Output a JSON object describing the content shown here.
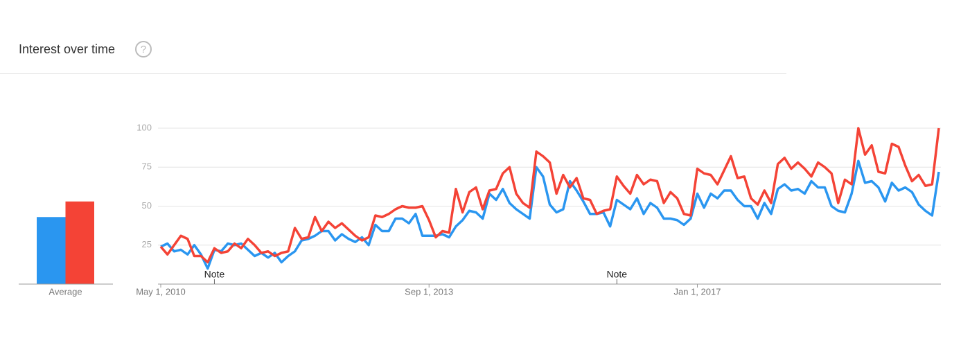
{
  "header": {
    "title": "Interest over time",
    "help_icon": "?"
  },
  "chart_data": [
    {
      "type": "line",
      "x": [
        0,
        1,
        2,
        3,
        4,
        5,
        6,
        7,
        8,
        9,
        10,
        11,
        12,
        13,
        14,
        15,
        16,
        17,
        18,
        19,
        20,
        21,
        22,
        23,
        24,
        25,
        26,
        27,
        28,
        29,
        30,
        31,
        32,
        33,
        34,
        35,
        36,
        37,
        38,
        39,
        40,
        41,
        42,
        43,
        44,
        45,
        46,
        47,
        48,
        49,
        50,
        51,
        52,
        53,
        54,
        55,
        56,
        57,
        58,
        59,
        60,
        61,
        62,
        63,
        64,
        65,
        66,
        67,
        68,
        69,
        70,
        71,
        72,
        73,
        74,
        75,
        76,
        77,
        78,
        79,
        80,
        81,
        82,
        83,
        84,
        85,
        86,
        87,
        88,
        89,
        90,
        91,
        92,
        93,
        94,
        95,
        96,
        97,
        98,
        99,
        100,
        101,
        102,
        103,
        104,
        105,
        106,
        107,
        108,
        109,
        110,
        111,
        112,
        113,
        114,
        115,
        116
      ],
      "xlim": [
        0,
        116
      ],
      "xticks": [
        {
          "value": 0,
          "label": "May 1, 2010"
        },
        {
          "value": 40,
          "label": "Sep 1, 2013"
        },
        {
          "value": 80,
          "label": "Jan 1, 2017"
        }
      ],
      "ylim": [
        0,
        100
      ],
      "yticks": [
        25,
        50,
        75,
        100
      ],
      "grid": true,
      "annotations": [
        {
          "text": "Note",
          "x": 8
        },
        {
          "text": "Note",
          "x": 68
        }
      ],
      "series": [
        {
          "color": "#2a96f0",
          "values": [
            24,
            26,
            21,
            22,
            19,
            25,
            19,
            10,
            22,
            21,
            26,
            25,
            26,
            22,
            18,
            20,
            17,
            20,
            14,
            18,
            21,
            28,
            29,
            31,
            34,
            34,
            28,
            32,
            29,
            27,
            30,
            25,
            38,
            34,
            34,
            42,
            42,
            39,
            45,
            31,
            31,
            31,
            32,
            30,
            37,
            41,
            47,
            46,
            42,
            58,
            54,
            61,
            52,
            48,
            45,
            42,
            75,
            69,
            51,
            46,
            48,
            66,
            60,
            53,
            45,
            45,
            46,
            37,
            54,
            51,
            48,
            55,
            45,
            52,
            49,
            42,
            42,
            41,
            38,
            42,
            58,
            49,
            58,
            55,
            60,
            60,
            54,
            50,
            50,
            42,
            52,
            45,
            61,
            64,
            60,
            61,
            58,
            66,
            62,
            62,
            50,
            47,
            46,
            58,
            79,
            65,
            66,
            62,
            53,
            65,
            60,
            62,
            59,
            51,
            47,
            44,
            72
          ]
        },
        {
          "color": "#f44336",
          "values": [
            24,
            19,
            25,
            31,
            29,
            18,
            18,
            14,
            23,
            20,
            21,
            26,
            23,
            29,
            25,
            20,
            21,
            18,
            20,
            21,
            36,
            29,
            30,
            43,
            34,
            40,
            36,
            39,
            35,
            31,
            28,
            30,
            44,
            43,
            45,
            48,
            50,
            49,
            49,
            50,
            41,
            30,
            34,
            33,
            61,
            46,
            59,
            62,
            48,
            60,
            61,
            71,
            75,
            58,
            52,
            49,
            85,
            82,
            78,
            58,
            70,
            62,
            68,
            55,
            54,
            45,
            47,
            48,
            69,
            63,
            58,
            70,
            64,
            67,
            66,
            52,
            59,
            55,
            45,
            44,
            74,
            71,
            70,
            64,
            73,
            82,
            68,
            69,
            55,
            51,
            60,
            52,
            77,
            81,
            74,
            78,
            74,
            69,
            78,
            75,
            71,
            52,
            67,
            64,
            100,
            83,
            89,
            72,
            71,
            90,
            88,
            76,
            66,
            70,
            63,
            64,
            100
          ]
        }
      ]
    },
    {
      "type": "bar",
      "categories": [
        "Average"
      ],
      "ylim": [
        0,
        100
      ],
      "series": [
        {
          "color": "#2a96f0",
          "values": [
            43
          ]
        },
        {
          "color": "#f44336",
          "values": [
            53
          ]
        }
      ]
    }
  ]
}
